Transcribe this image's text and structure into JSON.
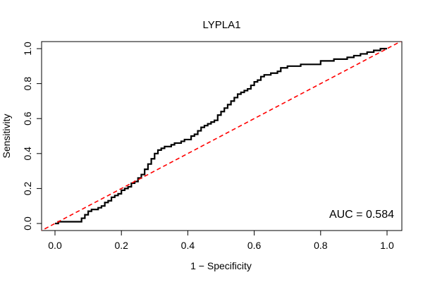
{
  "chart_data": {
    "type": "line",
    "title": "LYPLA1",
    "xlabel": "1 − Specificity",
    "ylabel": "Sensitivity",
    "xlim": [
      0,
      1
    ],
    "ylim": [
      0,
      1
    ],
    "xticks": [
      "0.0",
      "0.2",
      "0.4",
      "0.6",
      "0.8",
      "1.0"
    ],
    "yticks": [
      "0.0",
      "0.2",
      "0.4",
      "0.6",
      "0.8",
      "1.0"
    ],
    "grid": false,
    "annotation": "AUC = 0.584",
    "series": [
      {
        "style": "solid",
        "color": "#000000",
        "x": [
          0.0,
          0.01,
          0.02,
          0.06,
          0.07,
          0.08,
          0.09,
          0.1,
          0.11,
          0.12,
          0.13,
          0.14,
          0.15,
          0.16,
          0.17,
          0.18,
          0.19,
          0.2,
          0.21,
          0.22,
          0.23,
          0.24,
          0.25,
          0.26,
          0.27,
          0.28,
          0.29,
          0.3,
          0.31,
          0.32,
          0.33,
          0.34,
          0.35,
          0.36,
          0.37,
          0.38,
          0.39,
          0.4,
          0.41,
          0.42,
          0.43,
          0.44,
          0.45,
          0.46,
          0.47,
          0.48,
          0.49,
          0.5,
          0.51,
          0.52,
          0.53,
          0.54,
          0.55,
          0.56,
          0.57,
          0.58,
          0.59,
          0.6,
          0.61,
          0.62,
          0.63,
          0.64,
          0.65,
          0.66,
          0.67,
          0.68,
          0.7,
          0.72,
          0.74,
          0.76,
          0.78,
          0.8,
          0.82,
          0.84,
          0.86,
          0.88,
          0.9,
          0.92,
          0.94,
          0.96,
          0.98,
          1.0
        ],
        "y": [
          0.0,
          0.01,
          0.01,
          0.01,
          0.01,
          0.03,
          0.05,
          0.07,
          0.08,
          0.08,
          0.09,
          0.1,
          0.12,
          0.13,
          0.15,
          0.16,
          0.17,
          0.19,
          0.2,
          0.21,
          0.23,
          0.24,
          0.26,
          0.28,
          0.31,
          0.34,
          0.37,
          0.4,
          0.42,
          0.43,
          0.44,
          0.44,
          0.45,
          0.46,
          0.46,
          0.47,
          0.48,
          0.48,
          0.5,
          0.51,
          0.53,
          0.55,
          0.56,
          0.57,
          0.58,
          0.59,
          0.62,
          0.64,
          0.66,
          0.68,
          0.7,
          0.72,
          0.74,
          0.75,
          0.76,
          0.77,
          0.79,
          0.81,
          0.82,
          0.84,
          0.85,
          0.85,
          0.86,
          0.86,
          0.87,
          0.89,
          0.9,
          0.9,
          0.91,
          0.91,
          0.91,
          0.93,
          0.93,
          0.94,
          0.94,
          0.95,
          0.96,
          0.97,
          0.98,
          0.99,
          1.0,
          1.0
        ]
      },
      {
        "style": "dashed",
        "color": "#ff0000",
        "x": [
          -0.05,
          1.05
        ],
        "y": [
          -0.05,
          1.05
        ]
      }
    ]
  }
}
